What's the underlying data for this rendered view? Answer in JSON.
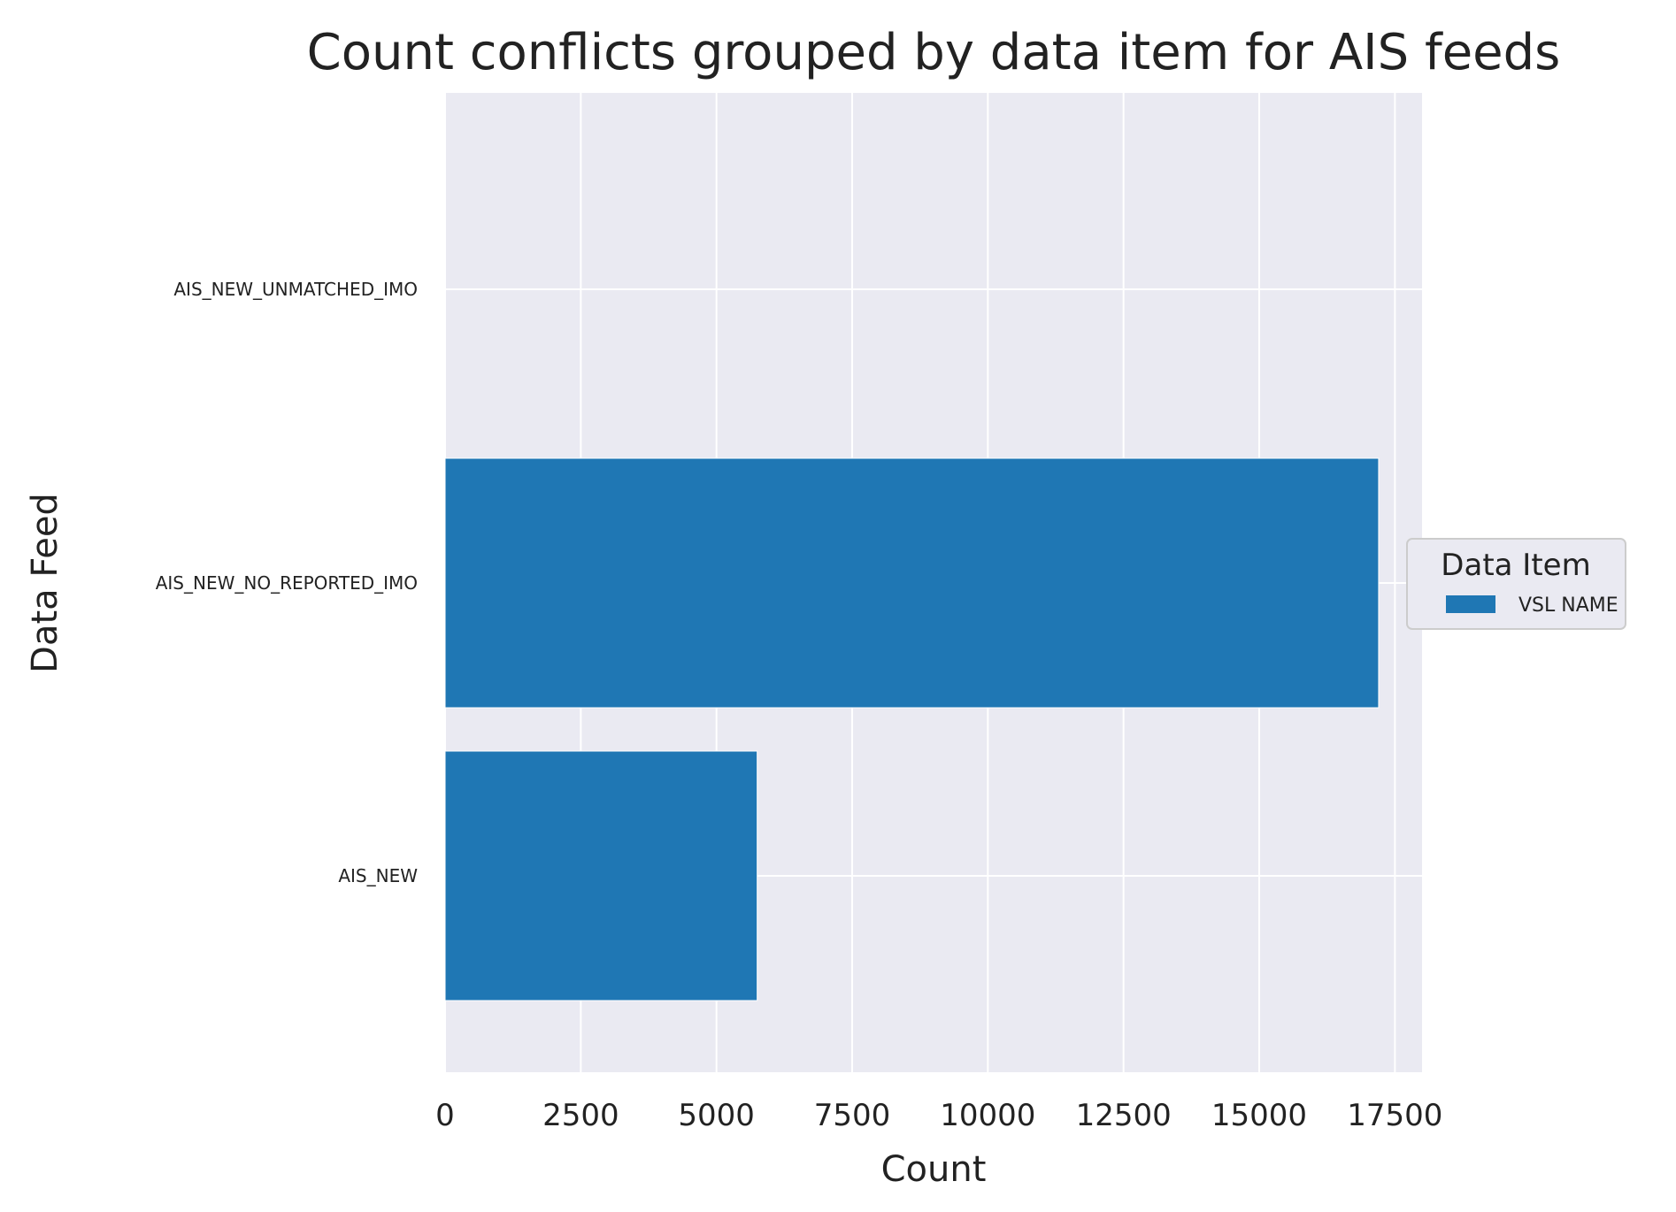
{
  "chart_data": {
    "type": "bar",
    "orientation": "horizontal",
    "title": "Count conflicts grouped by data item for AIS feeds",
    "xlabel": "Count",
    "ylabel": "Data Feed",
    "categories": [
      "AIS_NEW",
      "AIS_NEW_NO_REPORTED_IMO",
      "AIS_NEW_UNMATCHED_IMO"
    ],
    "series": [
      {
        "name": "VSL NAME",
        "values": [
          5750,
          17200,
          0
        ],
        "color": "#1f77b4"
      }
    ],
    "xlim": [
      0,
      18000
    ],
    "xticks": [
      0,
      2500,
      5000,
      7500,
      10000,
      12500,
      15000,
      17500
    ],
    "xtick_labels": [
      "0",
      "2500",
      "5000",
      "7500",
      "10000",
      "12500",
      "15000",
      "17500"
    ],
    "grid": true,
    "background": "#eaeaf2",
    "legend": {
      "title": "Data Item",
      "placement": "right"
    }
  }
}
